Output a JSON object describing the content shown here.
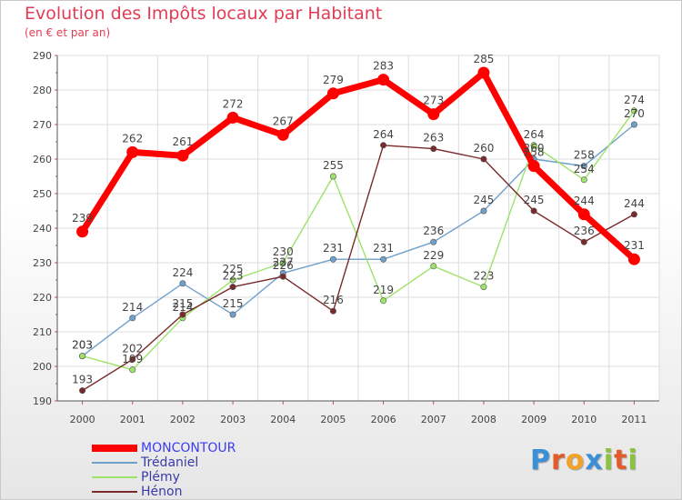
{
  "chart_data": {
    "type": "line",
    "title": "Evolution des Impôts locaux par Habitant",
    "subtitle": "(en € et par an)",
    "xlabel": "",
    "ylabel": "",
    "ylim": [
      190,
      290
    ],
    "yticks": [
      190,
      200,
      210,
      220,
      230,
      240,
      250,
      260,
      270,
      280,
      290
    ],
    "categories": [
      "2000",
      "2001",
      "2002",
      "2003",
      "2004",
      "2005",
      "2006",
      "2007",
      "2008",
      "2009",
      "2010",
      "2011"
    ],
    "grid": true,
    "legend_position": "bottom-left",
    "series": [
      {
        "name": "MONCONTOUR",
        "color": "#ff0000",
        "values": [
          239,
          262,
          261,
          272,
          267,
          279,
          283,
          273,
          285,
          258,
          244,
          231
        ]
      },
      {
        "name": "Trédaniel",
        "color": "#6fa0cc",
        "values": [
          203,
          214,
          224,
          215,
          227,
          231,
          231,
          236,
          245,
          260,
          258,
          270
        ]
      },
      {
        "name": "Plémy",
        "color": "#9de269",
        "values": [
          203,
          199,
          214,
          225,
          230,
          255,
          219,
          229,
          223,
          264,
          254,
          274
        ]
      },
      {
        "name": "Hénon",
        "color": "#7a2a2a",
        "values": [
          193,
          202,
          215,
          223,
          226,
          216,
          264,
          263,
          260,
          245,
          236,
          244
        ]
      }
    ]
  },
  "logo": {
    "letters": [
      "P",
      "r",
      "o",
      "x",
      "i",
      "t",
      "i"
    ],
    "colors": [
      "#3a8fd6",
      "#e35a2b",
      "#f2a12a",
      "#3a8fd6",
      "#8ac43f",
      "#e35a2b",
      "#8ac43f"
    ]
  }
}
